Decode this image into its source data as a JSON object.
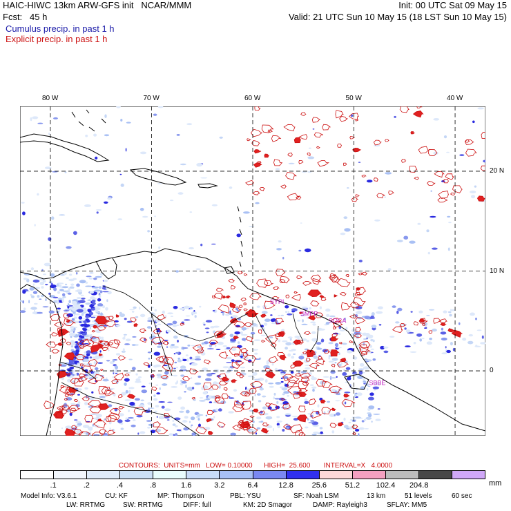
{
  "header": {
    "model_line": "HAIC-HIWC 13km ARW-GFS init   NCAR/MMM",
    "init_line": "Init: 00 UTC Sat 09 May 15",
    "fcst_line": "Fcst:   45 h",
    "valid_line": "Valid: 21 UTC Sun 10 May 15 (18 LST Sun 10 May 15)",
    "cumulus_line": "Cumulus precip. in past 1 h",
    "explicit_line": "Explicit precip. in past 1 h"
  },
  "map": {
    "lon_labels": [
      "80 W",
      "70 W",
      "60 W",
      "50 W",
      "40 W"
    ],
    "lat_labels": [
      "20 N",
      "10 N",
      "0"
    ],
    "lon_values": [
      -80,
      -70,
      -60,
      -50,
      -40
    ],
    "lat_values": [
      20,
      10,
      0
    ],
    "extent": {
      "lon_min": -83,
      "lon_max": -37,
      "lat_min": -6.5,
      "lat_max": 26.5
    },
    "station_labels": [
      {
        "text": "SYPI",
        "lon": -58.3,
        "lat": 6.7
      },
      {
        "text": "SMPP",
        "lon": -55.3,
        "lat": 5.5
      },
      {
        "text": "SOCA",
        "lon": -52.5,
        "lat": 4.8
      },
      {
        "text": "SBBE",
        "lon": -48.5,
        "lat": -1.4
      }
    ],
    "colors": {
      "cumulus": "#1a1aa8",
      "explicit": "#cc1010",
      "station": "#c020c0"
    }
  },
  "contours": {
    "text": "CONTOURS:  UNITS=mm   LOW= 0.10000      HIGH=  25.600       INTERVAL=X   4.0000"
  },
  "colorbar": {
    "colors": [
      "#ffffff",
      "#f2f6fc",
      "#e0ecfa",
      "#cce0f6",
      "#e8fcfc",
      "#c8dcf8",
      "#a8c0f6",
      "#7a88f2",
      "#3030ee",
      "#fcd8d8",
      "#f4a0c0",
      "#bcbcbc",
      "#484848",
      "#d0a8f8"
    ],
    "labels": [
      ".1",
      ".2",
      ".4",
      ".8",
      "1.6",
      "3.2",
      "6.4",
      "12.8",
      "25.6",
      "51.2",
      "102.4",
      "204.8"
    ],
    "units": "mm"
  },
  "footer": {
    "line1": [
      {
        "text": "Model Info: V3.6.1"
      },
      {
        "text": "CU: KF"
      },
      {
        "text": "MP: Thompson"
      },
      {
        "text": "PBL: YSU"
      },
      {
        "text": "SF: Noah LSM"
      },
      {
        "text": "13 km"
      },
      {
        "text": "51 levels"
      },
      {
        "text": "60 sec"
      }
    ],
    "line2": [
      {
        "text": "LW: RRTMG"
      },
      {
        "text": "SW: RRTMG"
      },
      {
        "text": "DIFF: full"
      },
      {
        "text": "KM: 2D Smagor"
      },
      {
        "text": "DAMP: Rayleigh3"
      },
      {
        "text": "SFLAY: MM5"
      }
    ]
  }
}
